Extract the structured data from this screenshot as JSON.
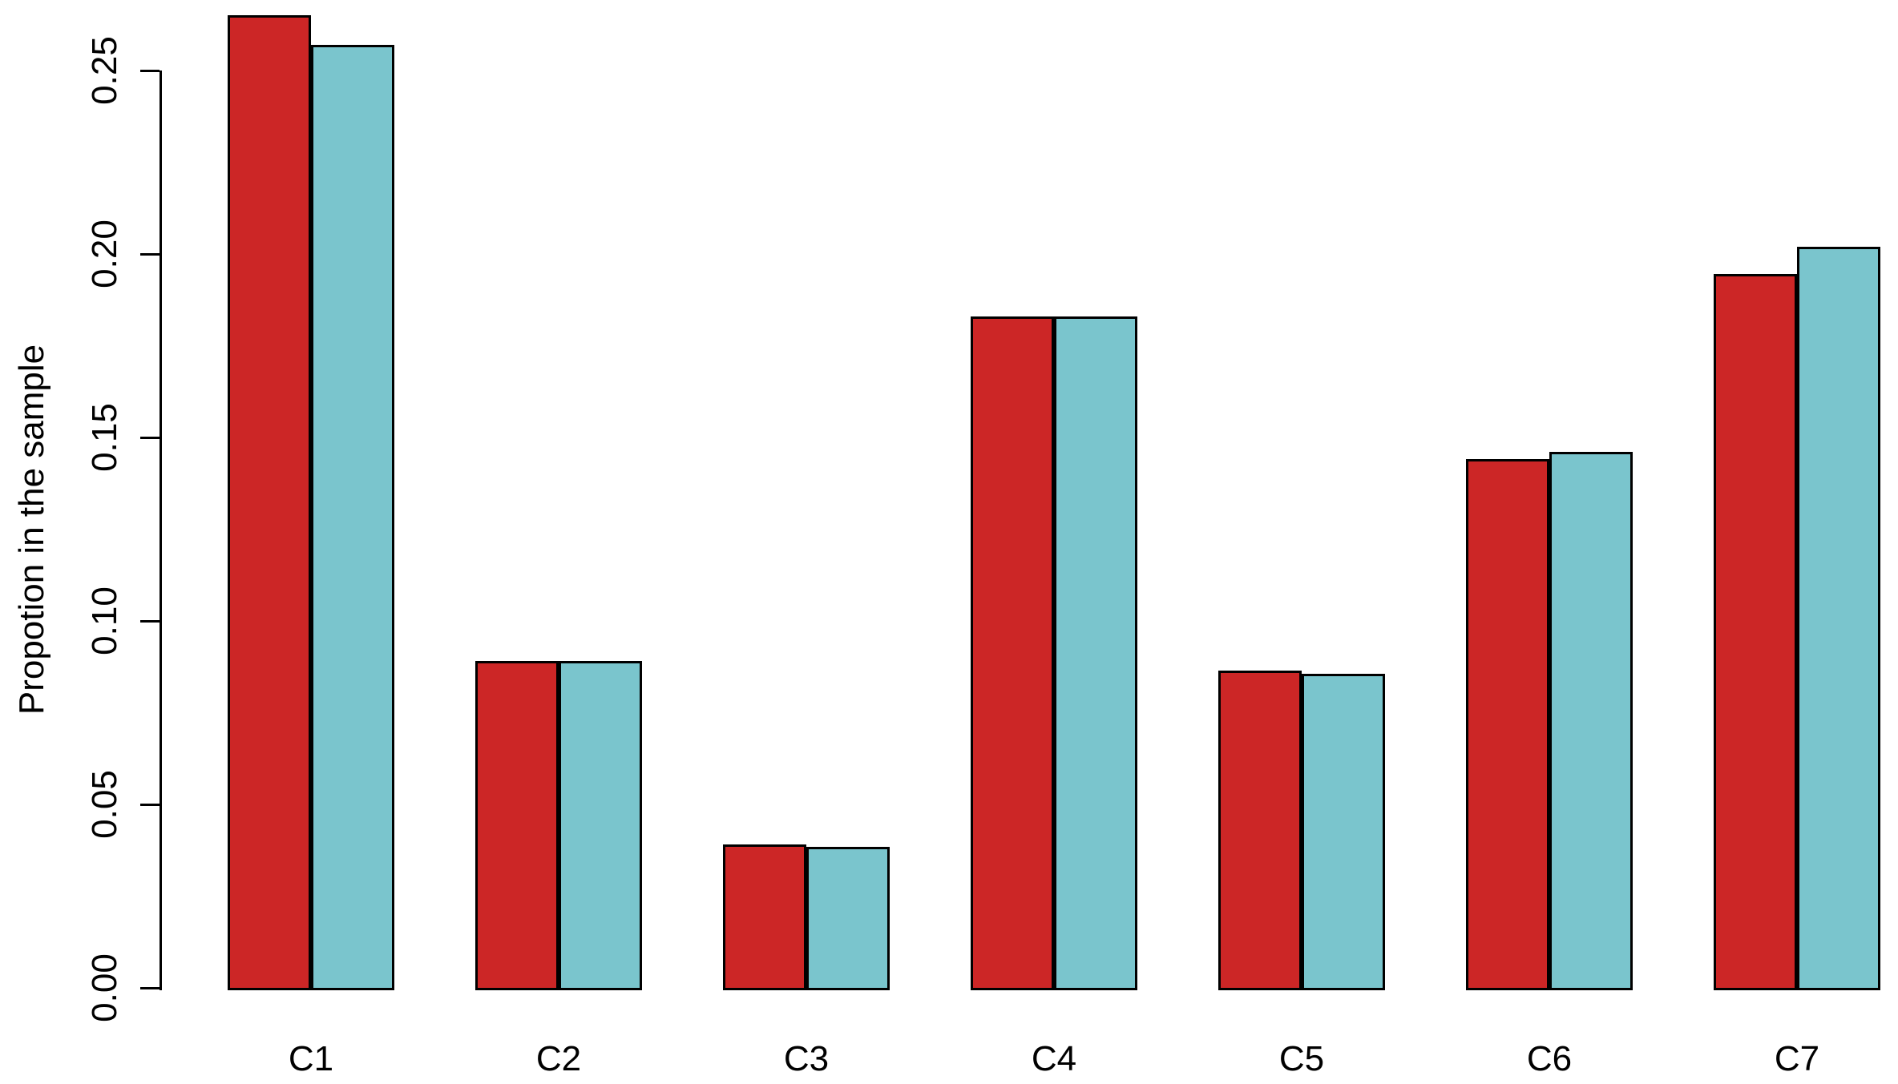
{
  "chart_data": {
    "type": "bar",
    "title": "",
    "categories": [
      "C1",
      "C2",
      "C3",
      "C4",
      "C5",
      "C6",
      "C7"
    ],
    "series": [
      {
        "name": "red_bars",
        "color": "#CC2626",
        "values": [
          0.265,
          0.089,
          0.039,
          0.183,
          0.0865,
          0.144,
          0.1945
        ]
      },
      {
        "name": "cyan_bars",
        "color": "#7AC5CD",
        "values": [
          0.257,
          0.089,
          0.0385,
          0.183,
          0.0855,
          0.146,
          0.202
        ]
      }
    ],
    "xlabel": "",
    "ylabel": "Propotion in the sample",
    "ylim": [
      0,
      0.27
    ],
    "yticks": [
      0,
      0.05,
      0.1,
      0.15,
      0.2,
      0.25
    ],
    "ytick_labels": [
      "0.00",
      "0.05",
      "0.10",
      "0.15",
      "0.20",
      "0.25"
    ],
    "legend": "none",
    "grid": false,
    "bar_border_color": "#000000",
    "background_color": "#FFFFFF"
  }
}
